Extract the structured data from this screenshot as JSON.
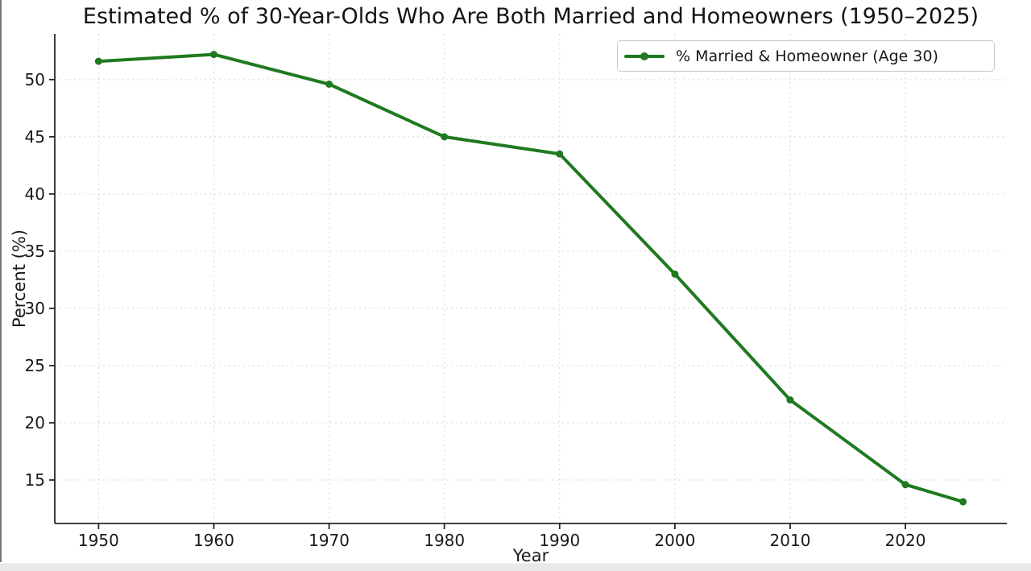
{
  "window": {
    "background": "#ffffff",
    "left_edge_color": "#777777",
    "bottom_strip_color": "#e9e9e9"
  },
  "legend": {
    "label": "% Married & Homeowner (Age 30)"
  },
  "chart_data": {
    "type": "line",
    "title": "Estimated % of 30-Year-Olds Who Are Both Married and Homeowners (1950–2025)",
    "xlabel": "Year",
    "ylabel": "Percent (%)",
    "x": [
      1950,
      1960,
      1970,
      1980,
      1990,
      2000,
      2010,
      2020,
      2025
    ],
    "series": [
      {
        "name": "% Married & Homeowner (Age 30)",
        "color": "#1f7a1f",
        "marker": "circle",
        "values": [
          51.6,
          52.2,
          49.6,
          45.0,
          43.5,
          33.0,
          22.0,
          14.6,
          13.1
        ]
      }
    ],
    "xticks": [
      1950,
      1960,
      1970,
      1980,
      1990,
      2000,
      2010,
      2020
    ],
    "yticks": [
      15,
      20,
      25,
      30,
      35,
      40,
      45,
      50
    ],
    "xlim": [
      1946.2,
      2028.8
    ],
    "ylim": [
      11.2,
      54.0
    ],
    "grid": true,
    "grid_style": "dashed",
    "grid_color": "#d7d7d7",
    "axis_color": "#262626",
    "text_color": "#1a1a1a",
    "legend_position": "upper right"
  }
}
